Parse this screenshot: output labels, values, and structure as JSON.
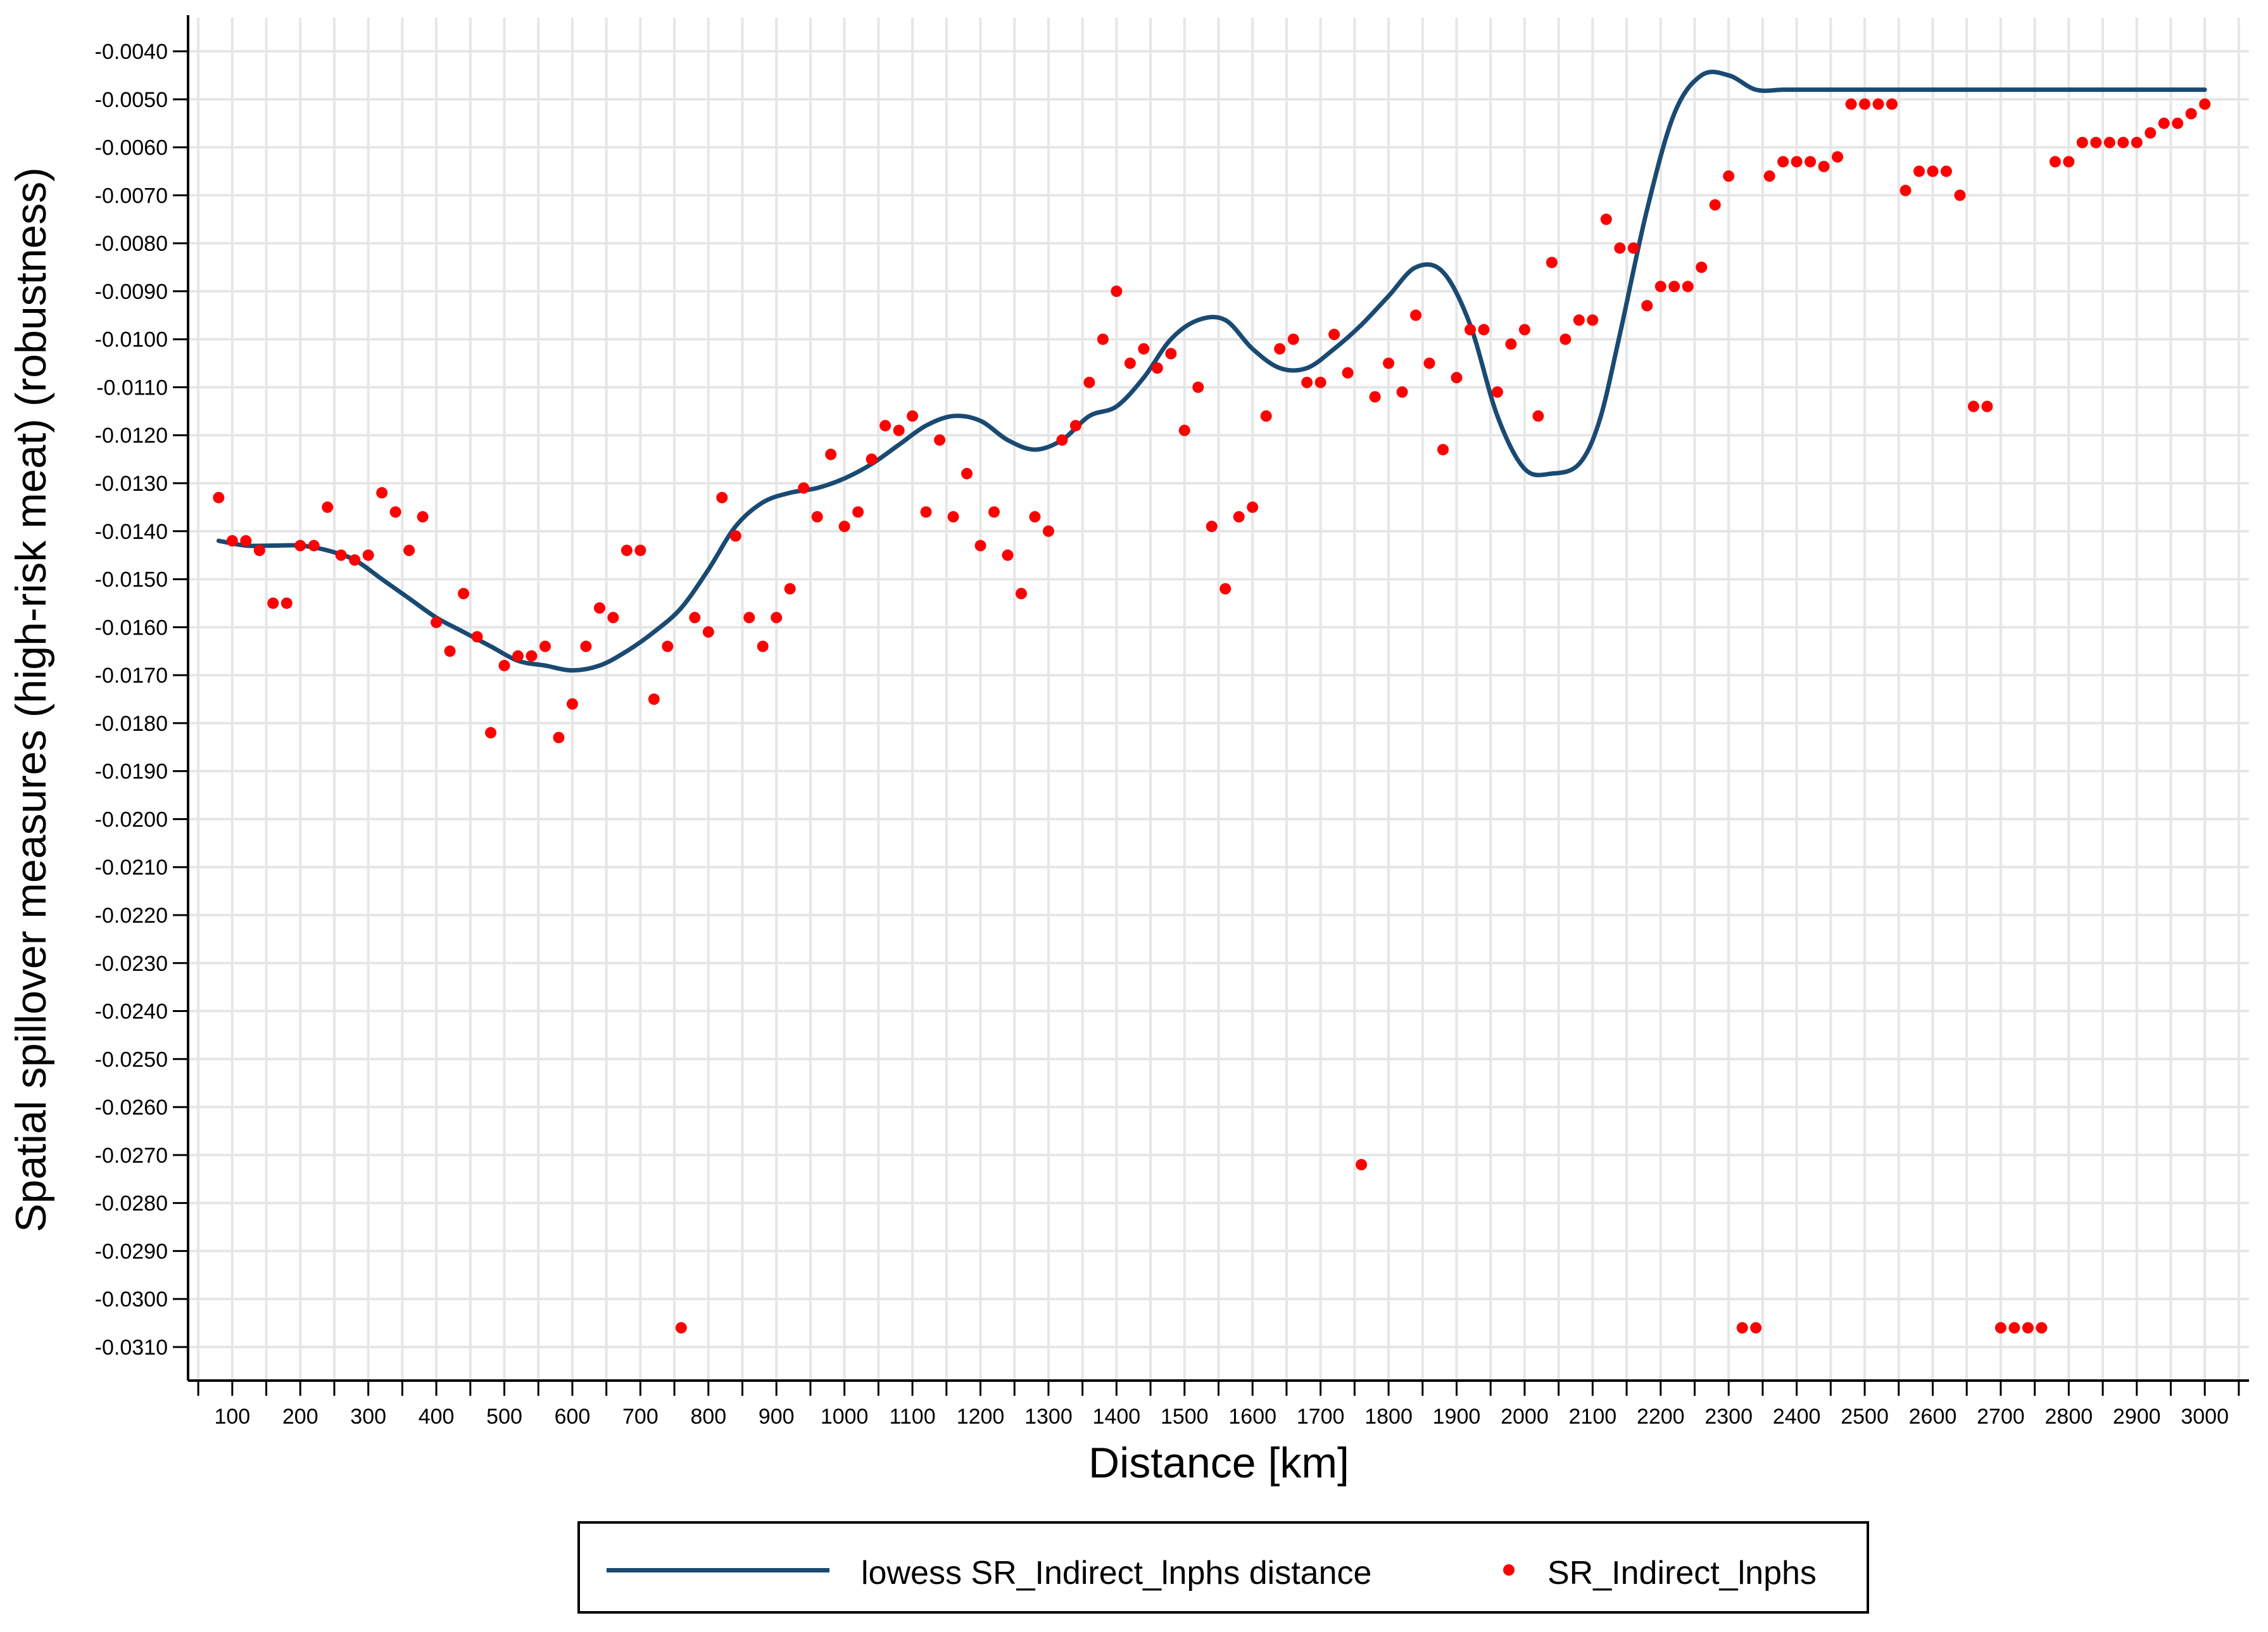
{
  "chart_data": {
    "type": "scatter",
    "title": "",
    "xlabel": "Distance [km]",
    "ylabel": "Spatial spillover measures (high-risk meat) (robustness)",
    "xlim": [
      35,
      3065
    ],
    "ylim": [
      -0.0317,
      -0.0033
    ],
    "x_ticks": [
      100,
      200,
      300,
      400,
      500,
      600,
      700,
      800,
      900,
      1000,
      1100,
      1200,
      1300,
      1400,
      1500,
      1600,
      1700,
      1800,
      1900,
      2000,
      2100,
      2200,
      2300,
      2400,
      2500,
      2600,
      2700,
      2800,
      2900,
      3000
    ],
    "x_tick_labels": [
      "100",
      "200",
      "300",
      "400",
      "500",
      "600",
      "700",
      "800",
      "900",
      "1000",
      "1100",
      "1200",
      "1300",
      "1400",
      "1500",
      "1600",
      "1700",
      "1800",
      "1900",
      "2000",
      "2100",
      "2200",
      "2300",
      "2400",
      "2500",
      "2600",
      "2700",
      "2800",
      "2900",
      "3000"
    ],
    "x_minor_step": 50,
    "y_ticks": [
      -0.004,
      -0.005,
      -0.006,
      -0.007,
      -0.008,
      -0.009,
      -0.01,
      -0.011,
      -0.012,
      -0.013,
      -0.014,
      -0.015,
      -0.016,
      -0.017,
      -0.018,
      -0.019,
      -0.02,
      -0.021,
      -0.022,
      -0.023,
      -0.024,
      -0.025,
      -0.026,
      -0.027,
      -0.028,
      -0.029,
      -0.03,
      -0.031
    ],
    "y_tick_labels": [
      "-0.0040",
      "-0.0050",
      "-0.0060",
      "-0.0070",
      "-0.0080",
      "-0.0090",
      "-0.0100",
      "-0.0110",
      "-0.0120",
      "-0.0130",
      "-0.0140",
      "-0.0150",
      "-0.0160",
      "-0.0170",
      "-0.0180",
      "-0.0190",
      "-0.0200",
      "-0.0210",
      "-0.0220",
      "-0.0230",
      "-0.0240",
      "-0.0250",
      "-0.0260",
      "-0.0270",
      "-0.0280",
      "-0.0290",
      "-0.0300",
      "-0.0310"
    ],
    "grid": true,
    "legend_position": "bottom",
    "series": [
      {
        "name": "lowess SR_Indirect_lnphs distance",
        "kind": "line",
        "color": "#1a4a72",
        "x": [
          80,
          120,
          160,
          200,
          240,
          280,
          320,
          360,
          400,
          440,
          480,
          520,
          560,
          600,
          640,
          680,
          720,
          760,
          800,
          840,
          880,
          920,
          960,
          1000,
          1040,
          1080,
          1120,
          1160,
          1200,
          1240,
          1280,
          1320,
          1360,
          1400,
          1440,
          1480,
          1520,
          1560,
          1600,
          1640,
          1680,
          1720,
          1760,
          1800,
          1840,
          1880,
          1920,
          1960,
          2000,
          2040,
          2080,
          2110,
          2140,
          2180,
          2220,
          2260,
          2300,
          2340,
          2380,
          2420,
          2460,
          2480,
          2500,
          2540,
          2580,
          2620,
          2660,
          2700,
          2740,
          2780,
          2820,
          2860,
          2900,
          2940,
          2960,
          2980,
          3000
        ],
        "y": [
          -0.0142,
          -0.0143,
          -0.0143,
          -0.0143,
          -0.0144,
          -0.0146,
          -0.015,
          -0.0154,
          -0.0158,
          -0.0161,
          -0.0164,
          -0.0167,
          -0.0168,
          -0.0169,
          -0.0168,
          -0.0165,
          -0.0161,
          -0.0156,
          -0.0148,
          -0.0139,
          -0.0134,
          -0.0132,
          -0.0131,
          -0.0129,
          -0.0126,
          -0.0122,
          -0.0118,
          -0.0116,
          -0.0117,
          -0.0121,
          -0.0123,
          -0.0121,
          -0.0116,
          -0.0114,
          -0.0108,
          -0.01,
          -0.0096,
          -0.0096,
          -0.0102,
          -0.0106,
          -0.0106,
          -0.0102,
          -0.0097,
          -0.0091,
          -0.0085,
          -0.0086,
          -0.0097,
          -0.0116,
          -0.0127,
          -0.0128,
          -0.0126,
          -0.0117,
          -0.0099,
          -0.0073,
          -0.0053,
          -0.0045,
          -0.0045,
          -0.0048,
          -0.0048,
          -0.0048,
          -0.0048,
          -0.0048,
          -0.0048,
          -0.0048,
          -0.0048,
          -0.0048,
          -0.0048,
          -0.0048,
          -0.0048,
          -0.0048,
          -0.0048,
          -0.0048,
          -0.0048,
          -0.0048,
          -0.0048,
          -0.0048,
          -0.0048
        ]
      },
      {
        "name": "SR_Indirect_lnphs",
        "kind": "scatter",
        "color": "#ff0000",
        "x": [
          80,
          100,
          120,
          140,
          160,
          180,
          200,
          220,
          240,
          260,
          280,
          300,
          320,
          340,
          360,
          380,
          400,
          420,
          440,
          460,
          480,
          500,
          520,
          540,
          560,
          580,
          600,
          620,
          640,
          660,
          680,
          700,
          720,
          740,
          760,
          780,
          800,
          820,
          840,
          860,
          880,
          900,
          920,
          940,
          960,
          980,
          1000,
          1020,
          1040,
          1060,
          1080,
          1100,
          1120,
          1140,
          1160,
          1180,
          1200,
          1220,
          1240,
          1260,
          1280,
          1300,
          1320,
          1340,
          1360,
          1380,
          1400,
          1420,
          1440,
          1460,
          1480,
          1500,
          1520,
          1540,
          1560,
          1580,
          1600,
          1620,
          1640,
          1660,
          1680,
          1700,
          1720,
          1740,
          1760,
          1780,
          1800,
          1820,
          1840,
          1860,
          1880,
          1900,
          1920,
          1940,
          1960,
          1980,
          2000,
          2020,
          2040,
          2060,
          2080,
          2100,
          2120,
          2140,
          2160,
          2180,
          2200,
          2220,
          2240,
          2260,
          2280,
          2300,
          2320,
          2340,
          2360,
          2380,
          2400,
          2420,
          2440,
          2460,
          2480,
          2500,
          2520,
          2540,
          2560,
          2580,
          2600,
          2620,
          2640,
          2660,
          2680,
          2700,
          2720,
          2740,
          2760,
          2780,
          2800,
          2820,
          2840,
          2860,
          2880,
          2900,
          2920,
          2940,
          2960,
          2980,
          3000
        ],
        "y": [
          -0.0133,
          -0.0142,
          -0.0142,
          -0.0144,
          -0.0155,
          -0.0155,
          -0.0143,
          -0.0143,
          -0.0135,
          -0.0145,
          -0.0146,
          -0.0145,
          -0.0132,
          -0.0136,
          -0.0144,
          -0.0137,
          -0.0159,
          -0.0165,
          -0.0153,
          -0.0162,
          -0.0182,
          -0.0168,
          -0.0166,
          -0.0166,
          -0.0164,
          -0.0183,
          -0.0176,
          -0.0164,
          -0.0156,
          -0.0158,
          -0.0144,
          -0.0144,
          -0.0175,
          -0.0164,
          -0.0306,
          -0.0158,
          -0.0161,
          -0.0133,
          -0.0141,
          -0.0158,
          -0.0164,
          -0.0158,
          -0.0152,
          -0.0131,
          -0.0137,
          -0.0124,
          -0.0139,
          -0.0136,
          -0.0125,
          -0.0118,
          -0.0119,
          -0.0116,
          -0.0136,
          -0.0121,
          -0.0137,
          -0.0128,
          -0.0143,
          -0.0136,
          -0.0145,
          -0.0153,
          -0.0137,
          -0.014,
          -0.0121,
          -0.0118,
          -0.0109,
          -0.01,
          -0.009,
          -0.0105,
          -0.0102,
          -0.0106,
          -0.0103,
          -0.0119,
          -0.011,
          -0.0139,
          -0.0152,
          -0.0137,
          -0.0135,
          -0.0116,
          -0.0102,
          -0.01,
          -0.0109,
          -0.0109,
          -0.0099,
          -0.0107,
          -0.0272,
          -0.0112,
          -0.0105,
          -0.0111,
          -0.0095,
          -0.0105,
          -0.0123,
          -0.0108,
          -0.0098,
          -0.0098,
          -0.0111,
          -0.0101,
          -0.0098,
          -0.0116,
          -0.0084,
          -0.01,
          -0.0096,
          -0.0096,
          -0.0075,
          -0.0081,
          -0.0081,
          -0.0093,
          -0.0089,
          -0.0089,
          -0.0089,
          -0.0085,
          -0.0072,
          -0.0066,
          -0.0306,
          -0.0306,
          -0.0066,
          -0.0063,
          -0.0063,
          -0.0063,
          -0.0064,
          -0.0062,
          -0.0051,
          -0.0051,
          -0.0051,
          -0.0051,
          -0.0069,
          -0.0065,
          -0.0065,
          -0.0065,
          -0.007,
          -0.0114,
          -0.0114,
          -0.0306,
          -0.0306,
          -0.0306,
          -0.0306,
          -0.0063,
          -0.0063,
          -0.0059,
          -0.0059,
          -0.0059,
          -0.0059,
          -0.0059,
          -0.0057,
          -0.0055,
          -0.0055,
          -0.0053,
          -0.0051
        ]
      }
    ]
  },
  "legend": {
    "line_label": "lowess SR_Indirect_lnphs distance",
    "dot_label": "SR_Indirect_lnphs"
  }
}
